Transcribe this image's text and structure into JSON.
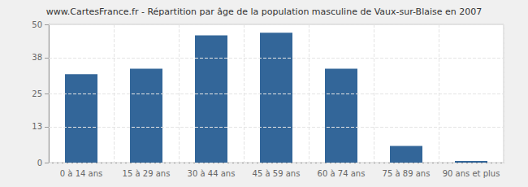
{
  "chart_data": {
    "type": "bar",
    "title": "www.CartesFrance.fr - Répartition par âge de la population masculine de Vaux-sur-Blaise en 2007",
    "categories": [
      "0 à 14 ans",
      "15 à 29 ans",
      "30 à 44 ans",
      "45 à 59 ans",
      "60 à 74 ans",
      "75 à 89 ans",
      "90 ans et plus"
    ],
    "values": [
      32,
      34,
      46,
      47,
      34,
      6,
      0
    ],
    "color": "#336699",
    "ylim": [
      0,
      50
    ],
    "yticks": [
      0,
      13,
      25,
      38,
      50
    ],
    "grid": true
  }
}
